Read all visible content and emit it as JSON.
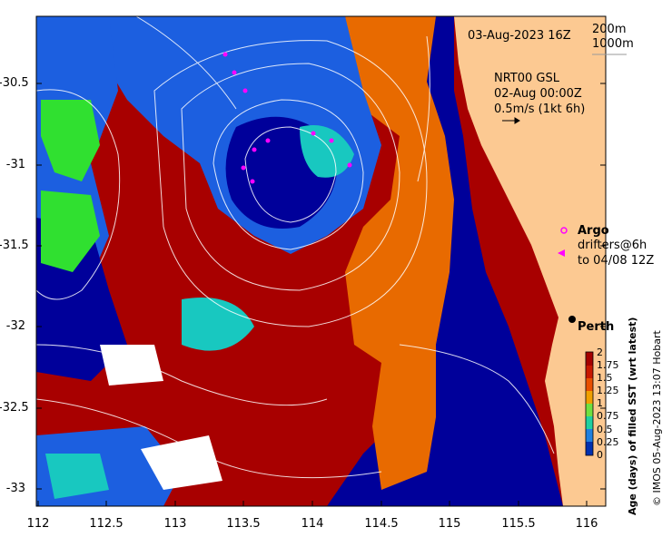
{
  "title": "03-Aug-2023 16Z",
  "depth_legend": [
    "200m",
    "1000m"
  ],
  "current_info": [
    "NRT00 GSL",
    "02-Aug 00:00Z",
    "0.5m/s (1kt 6h)"
  ],
  "legend": {
    "argo_label": "Argo",
    "drifters_line1": "drifters@6h",
    "drifters_line2": "to 04/08 12Z"
  },
  "city_label": "Perth",
  "colorbar": {
    "title": "Age (days) of filled SST (wrt latest)",
    "ticks": [
      "2",
      "1.75",
      "1.5",
      "1.25",
      "1",
      "0.75",
      "0.5",
      "0.25",
      "0"
    ],
    "colors": [
      "#a50000",
      "#d92a00",
      "#f07a00",
      "#f0c000",
      "#7fe040",
      "#20d0a0",
      "#3090e0",
      "#1040c0",
      "#000080"
    ]
  },
  "credit": "© IMOS 05-Aug-2023 13:07 Hobart",
  "axes": {
    "x_ticks": [
      "112",
      "112.5",
      "113",
      "113.5",
      "114",
      "114.5",
      "115",
      "115.5",
      "116"
    ],
    "y_ticks": [
      "-30.5",
      "-31",
      "-31.5",
      "-32",
      "-32.5",
      "-33"
    ],
    "xlim": [
      112,
      116.1
    ],
    "ylim": [
      -33.2,
      -30.05
    ]
  },
  "colors": {
    "land": "#fcc992",
    "red": "#a80000",
    "orange": "#e86a00",
    "navy": "#00009a",
    "blue": "#1c5fe0",
    "teal": "#18c8c0",
    "green": "#30e030",
    "argo": "#ff00ff"
  }
}
